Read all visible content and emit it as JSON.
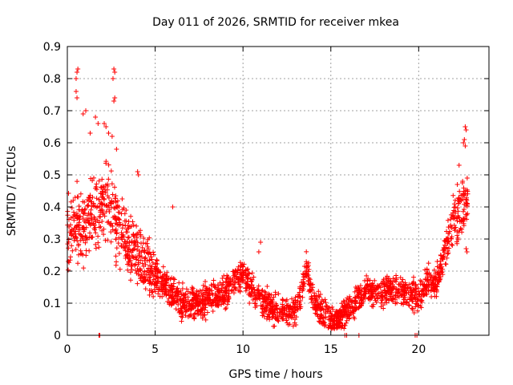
{
  "chart_data": {
    "type": "scatter",
    "title": "Day 011 of 2026, SRMTID for receiver mkea",
    "xlabel": "GPS time / hours",
    "ylabel": "SRMTID / TECUs",
    "xlim": [
      0,
      24
    ],
    "ylim": [
      0,
      0.9
    ],
    "xticks": [
      0,
      5,
      10,
      15,
      20
    ],
    "yticks": [
      0,
      0.1,
      0.2,
      0.3,
      0.4,
      0.5,
      0.6,
      0.7,
      0.8,
      0.9
    ],
    "xtick_labels": [
      "0",
      "5",
      "10",
      "15",
      "20"
    ],
    "ytick_labels": [
      "0",
      "0.1",
      "0.2",
      "0.3",
      "0.4",
      "0.5",
      "0.6",
      "0.7",
      "0.8",
      "0.9"
    ],
    "grid": true,
    "marker": "+",
    "marker_color": "#ff0000",
    "trend": [
      [
        0.0,
        0.3
      ],
      [
        0.5,
        0.34
      ],
      [
        1.0,
        0.33
      ],
      [
        1.5,
        0.38
      ],
      [
        2.0,
        0.4
      ],
      [
        2.5,
        0.42
      ],
      [
        3.0,
        0.33
      ],
      [
        3.5,
        0.28
      ],
      [
        4.0,
        0.25
      ],
      [
        4.5,
        0.22
      ],
      [
        5.0,
        0.19
      ],
      [
        5.5,
        0.16
      ],
      [
        6.0,
        0.13
      ],
      [
        6.5,
        0.1
      ],
      [
        7.0,
        0.1
      ],
      [
        8.0,
        0.11
      ],
      [
        9.0,
        0.13
      ],
      [
        9.5,
        0.17
      ],
      [
        10.0,
        0.19
      ],
      [
        10.5,
        0.14
      ],
      [
        11.0,
        0.11
      ],
      [
        11.5,
        0.09
      ],
      [
        12.0,
        0.07
      ],
      [
        12.5,
        0.07
      ],
      [
        13.0,
        0.08
      ],
      [
        13.3,
        0.13
      ],
      [
        13.6,
        0.21
      ],
      [
        14.0,
        0.11
      ],
      [
        14.5,
        0.07
      ],
      [
        15.0,
        0.04
      ],
      [
        15.5,
        0.05
      ],
      [
        16.0,
        0.08
      ],
      [
        16.5,
        0.11
      ],
      [
        17.0,
        0.14
      ],
      [
        17.5,
        0.13
      ],
      [
        18.0,
        0.14
      ],
      [
        18.5,
        0.15
      ],
      [
        19.0,
        0.14
      ],
      [
        19.5,
        0.13
      ],
      [
        20.0,
        0.12
      ],
      [
        20.5,
        0.17
      ],
      [
        21.0,
        0.16
      ],
      [
        21.5,
        0.27
      ],
      [
        22.0,
        0.35
      ],
      [
        22.5,
        0.4
      ],
      [
        22.8,
        0.42
      ]
    ],
    "spikes": [
      [
        0.55,
        0.82
      ],
      [
        0.6,
        0.83
      ],
      [
        0.5,
        0.76
      ],
      [
        0.55,
        0.74
      ],
      [
        0.5,
        0.8
      ],
      [
        2.65,
        0.83
      ],
      [
        2.7,
        0.82
      ],
      [
        2.6,
        0.8
      ],
      [
        2.7,
        0.74
      ],
      [
        2.65,
        0.73
      ],
      [
        0.9,
        0.69
      ],
      [
        1.05,
        0.7
      ],
      [
        1.3,
        0.63
      ],
      [
        1.6,
        0.68
      ],
      [
        1.75,
        0.66
      ],
      [
        2.1,
        0.66
      ],
      [
        2.2,
        0.65
      ],
      [
        2.35,
        0.63
      ],
      [
        2.55,
        0.62
      ],
      [
        2.8,
        0.58
      ],
      [
        4.0,
        0.51
      ],
      [
        4.05,
        0.5
      ],
      [
        6.0,
        0.4
      ],
      [
        11.0,
        0.29
      ],
      [
        10.9,
        0.26
      ],
      [
        22.65,
        0.65
      ],
      [
        22.7,
        0.64
      ],
      [
        22.6,
        0.61
      ],
      [
        22.55,
        0.6
      ],
      [
        22.65,
        0.59
      ],
      [
        22.3,
        0.53
      ],
      [
        22.5,
        0.48
      ],
      [
        22.2,
        0.47
      ],
      [
        22.7,
        0.27
      ],
      [
        22.75,
        0.26
      ]
    ],
    "baseline_points": [
      1.8,
      1.85,
      15.8,
      15.9,
      16.6,
      19.8,
      19.9
    ],
    "point_count": 2400
  }
}
